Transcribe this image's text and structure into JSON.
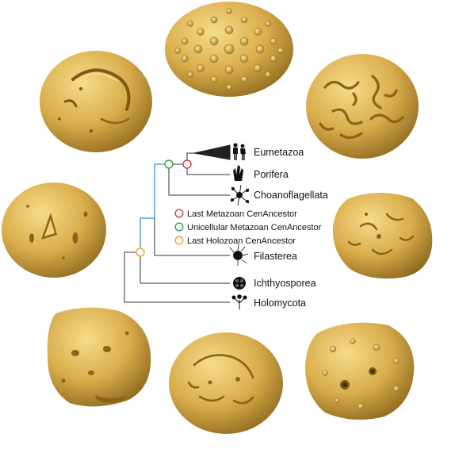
{
  "figure": {
    "colors": {
      "fossil_light": "#f2d27a",
      "fossil_mid": "#d4a94a",
      "fossil_dark": "#8a6418",
      "tree_line": "#333333",
      "holozoan_branch": "#3b8fd6",
      "last_metazoan": "#e0303a",
      "unicellular_metazoan": "#2e9e4a",
      "last_holozoan": "#e8a030"
    },
    "fossils": [
      {
        "name": "fossil-top-center",
        "texture": "tubercles"
      },
      {
        "name": "fossil-top-left",
        "texture": "smooth-folded"
      },
      {
        "name": "fossil-top-right",
        "texture": "cerebroid"
      },
      {
        "name": "fossil-mid-left",
        "texture": "smooth-pitted"
      },
      {
        "name": "fossil-mid-right",
        "texture": "rugose"
      },
      {
        "name": "fossil-bottom-left",
        "texture": "rugose-pitted"
      },
      {
        "name": "fossil-bottom-center",
        "texture": "wrinkled"
      },
      {
        "name": "fossil-bottom-right",
        "texture": "warty"
      }
    ],
    "taxa": [
      {
        "label": "Eumetazoa",
        "icon": "humans-icon"
      },
      {
        "label": "Porifera",
        "icon": "sponge-icon"
      },
      {
        "label": "Choanoflagellata",
        "icon": "choanoflagellate-icon"
      },
      {
        "label": "Filasterea",
        "icon": "filasterean-icon"
      },
      {
        "label": "Ichthyosporea",
        "icon": "ichthyosporean-icon"
      },
      {
        "label": "Holomycota",
        "icon": "fungus-icon"
      }
    ],
    "legend": [
      {
        "label": "Last Metazoan CenAncestor",
        "color": "#e0303a"
      },
      {
        "label": "Unicellular Metazoan CenAncestor",
        "color": "#2e9e4a"
      },
      {
        "label": "Last Holozoan CenAncestor",
        "color": "#e8a030"
      }
    ]
  }
}
